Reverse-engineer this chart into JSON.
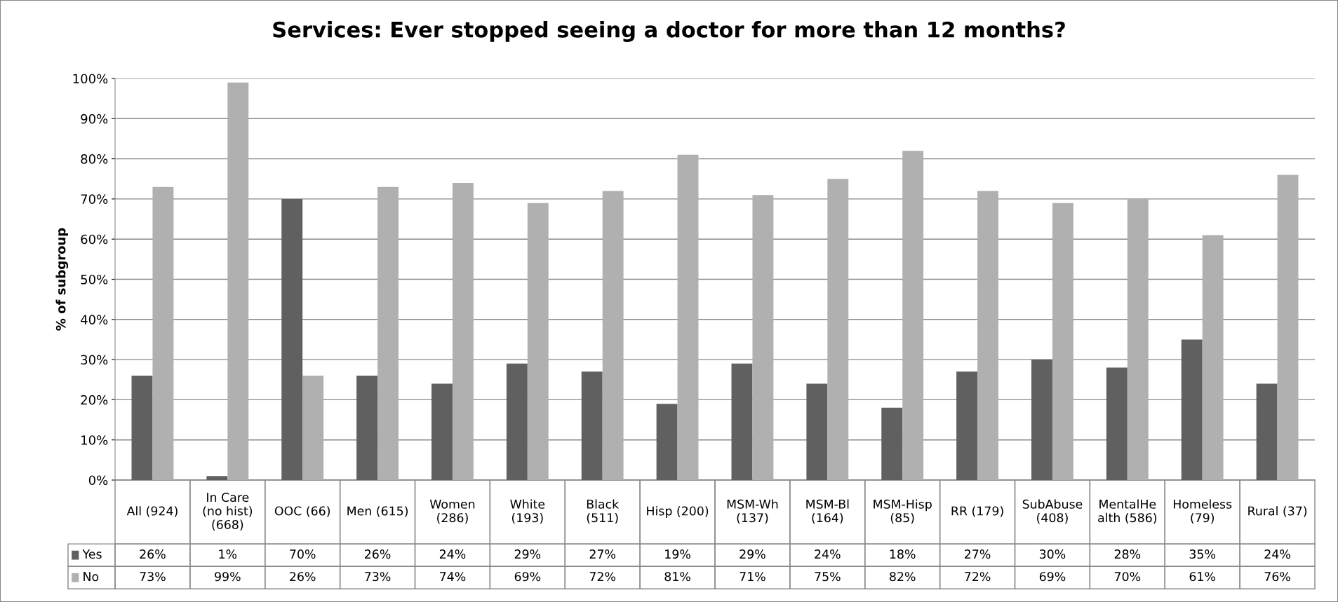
{
  "chart_data": {
    "type": "bar",
    "title": "Services: Ever stopped seeing a doctor for more than 12 months?",
    "ylabel": "% of subgroup",
    "categories": [
      "All (924)",
      "In Care\n(no hist)\n(668)",
      "OOC (66)",
      "Men (615)",
      "Women\n(286)",
      "White\n(193)",
      "Black\n(511)",
      "Hisp (200)",
      "MSM-Wh\n(137)",
      "MSM-Bl\n(164)",
      "MSM-Hisp\n(85)",
      "RR (179)",
      "SubAbuse\n(408)",
      "MentalHe\nalth (586)",
      "Homeless\n(79)",
      "Rural (37)"
    ],
    "series": [
      {
        "name": "Yes",
        "color": "#606060",
        "values": [
          26,
          1,
          70,
          26,
          24,
          29,
          27,
          19,
          29,
          24,
          18,
          27,
          30,
          28,
          35,
          24
        ],
        "value_labels": [
          "26%",
          "1%",
          "70%",
          "26%",
          "24%",
          "29%",
          "27%",
          "19%",
          "29%",
          "24%",
          "18%",
          "27%",
          "30%",
          "28%",
          "35%",
          "24%"
        ]
      },
      {
        "name": "No",
        "color": "#b0b0b0",
        "values": [
          73,
          99,
          26,
          73,
          74,
          69,
          72,
          81,
          71,
          75,
          82,
          72,
          69,
          70,
          61,
          76
        ],
        "value_labels": [
          "73%",
          "99%",
          "26%",
          "73%",
          "74%",
          "69%",
          "72%",
          "81%",
          "71%",
          "75%",
          "82%",
          "72%",
          "69%",
          "70%",
          "61%",
          "76%"
        ]
      }
    ],
    "ylim": [
      0,
      100
    ],
    "yticks": [
      {
        "value": 0,
        "label": "0%"
      },
      {
        "value": 10,
        "label": "10%"
      },
      {
        "value": 20,
        "label": "20%"
      },
      {
        "value": 30,
        "label": "30%"
      },
      {
        "value": 40,
        "label": "40%"
      },
      {
        "value": 50,
        "label": "50%"
      },
      {
        "value": 60,
        "label": "60%"
      },
      {
        "value": 70,
        "label": "70%"
      },
      {
        "value": 80,
        "label": "80%"
      },
      {
        "value": 90,
        "label": "90%"
      },
      {
        "value": 100,
        "label": "100%"
      }
    ],
    "grid": "y",
    "legend": "bottom"
  }
}
